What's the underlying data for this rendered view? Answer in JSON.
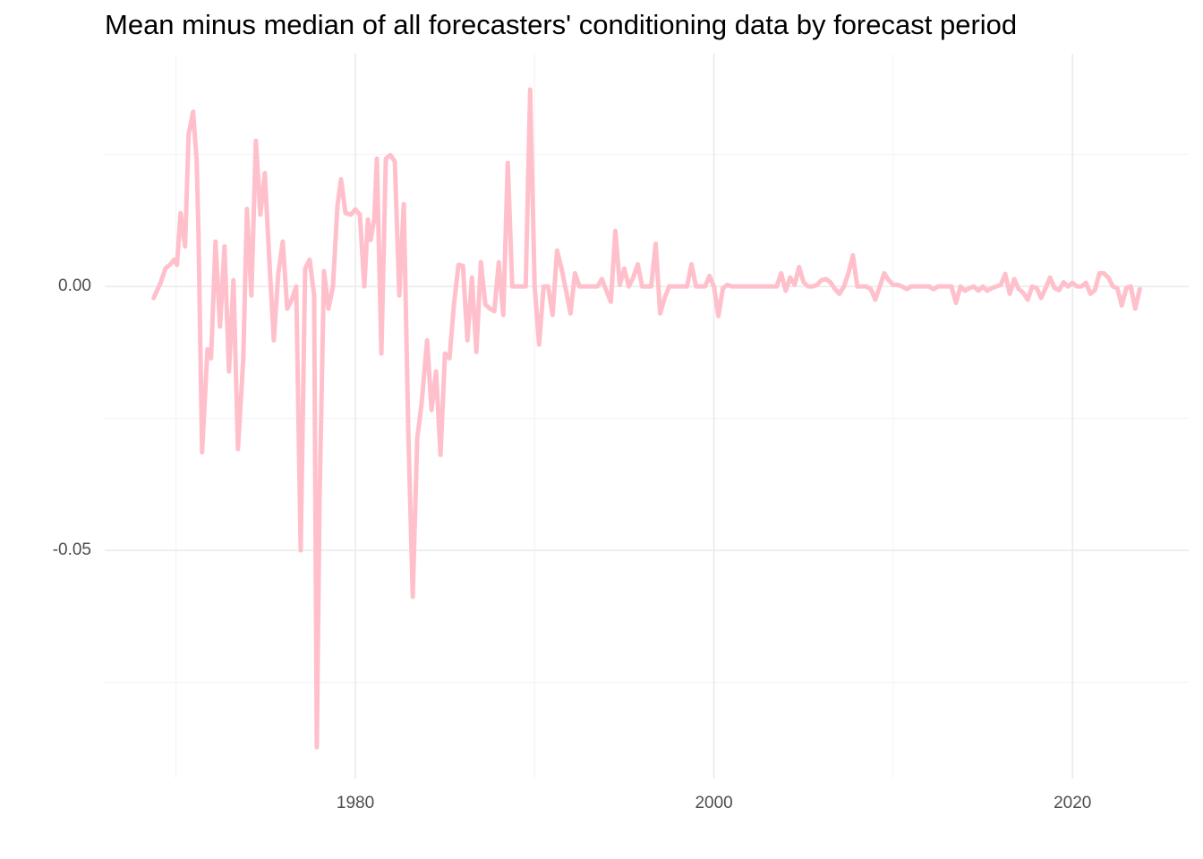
{
  "chart_data": {
    "type": "line",
    "title": "Mean minus median of all forecasters' conditioning data by forecast period",
    "color": "#ffc0cb",
    "x": [
      1968.75,
      1969.15,
      1969.4,
      1969.65,
      1969.9,
      1970.05,
      1970.25,
      1970.5,
      1970.7,
      1970.95,
      1971.15,
      1971.25,
      1971.45,
      1971.75,
      1971.95,
      1972.2,
      1972.45,
      1972.7,
      1972.95,
      1973.2,
      1973.45,
      1973.75,
      1973.95,
      1974.2,
      1974.45,
      1974.7,
      1974.95,
      1975.2,
      1975.45,
      1975.7,
      1975.95,
      1976.2,
      1976.45,
      1976.7,
      1976.95,
      1977.2,
      1977.45,
      1977.7,
      1977.85,
      1978.0,
      1978.25,
      1978.5,
      1978.75,
      1979.0,
      1979.2,
      1979.45,
      1979.75,
      1980.0,
      1980.25,
      1980.5,
      1980.7,
      1980.85,
      1981.05,
      1981.2,
      1981.45,
      1981.7,
      1981.95,
      1982.2,
      1982.45,
      1982.7,
      1982.95,
      1983.2,
      1983.45,
      1983.7,
      1984.0,
      1984.25,
      1984.5,
      1984.75,
      1985.0,
      1985.25,
      1985.5,
      1985.75,
      1986.0,
      1986.25,
      1986.5,
      1986.75,
      1987.0,
      1987.25,
      1987.5,
      1987.75,
      1988.0,
      1988.25,
      1988.5,
      1988.75,
      1989.0,
      1989.25,
      1989.5,
      1989.75,
      1990.0,
      1990.25,
      1990.5,
      1990.75,
      1991.0,
      1991.25,
      1991.5,
      1991.75,
      1992.0,
      1992.25,
      1992.5,
      1992.75,
      1993.0,
      1993.25,
      1993.5,
      1993.75,
      1994.0,
      1994.25,
      1994.5,
      1994.75,
      1995.0,
      1995.25,
      1995.5,
      1995.75,
      1996.0,
      1996.25,
      1996.5,
      1996.75,
      1997.0,
      1997.25,
      1997.5,
      1997.75,
      1998.0,
      1998.25,
      1998.5,
      1998.75,
      1999.0,
      1999.25,
      1999.5,
      1999.75,
      2000.0,
      2000.25,
      2000.5,
      2000.75,
      2001.0,
      2001.25,
      2001.5,
      2001.75,
      2002.0,
      2002.25,
      2002.5,
      2002.75,
      2003.0,
      2003.25,
      2003.5,
      2003.75,
      2004.0,
      2004.25,
      2004.5,
      2004.75,
      2005.0,
      2005.25,
      2005.5,
      2005.75,
      2006.0,
      2006.25,
      2006.5,
      2006.75,
      2007.0,
      2007.25,
      2007.5,
      2007.75,
      2008.0,
      2008.25,
      2008.5,
      2008.75,
      2009.0,
      2009.25,
      2009.5,
      2009.75,
      2010.0,
      2010.25,
      2010.5,
      2010.75,
      2011.0,
      2011.25,
      2011.5,
      2011.75,
      2012.0,
      2012.25,
      2012.5,
      2012.75,
      2013.0,
      2013.25,
      2013.5,
      2013.75,
      2014.0,
      2014.25,
      2014.5,
      2014.75,
      2015.0,
      2015.25,
      2015.5,
      2015.75,
      2016.0,
      2016.25,
      2016.5,
      2016.75,
      2017.0,
      2017.25,
      2017.5,
      2017.75,
      2018.0,
      2018.25,
      2018.5,
      2018.75,
      2019.0,
      2019.25,
      2019.5,
      2019.75,
      2020.0,
      2020.25,
      2020.5,
      2020.75,
      2021.0,
      2021.25,
      2021.5,
      2021.75,
      2022.0,
      2022.25,
      2022.5,
      2022.75,
      2023.0,
      2023.25,
      2023.5,
      2023.75
    ],
    "values": [
      -0.0022,
      0.0008,
      0.0034,
      0.0041,
      0.0051,
      0.0041,
      0.0139,
      0.0076,
      0.0288,
      0.0331,
      0.0237,
      0.0102,
      -0.0314,
      -0.0119,
      -0.0136,
      0.0085,
      -0.0076,
      0.0076,
      -0.0161,
      0.0012,
      -0.0308,
      -0.0136,
      0.0147,
      -0.0017,
      0.0276,
      0.0136,
      0.0215,
      0.0051,
      -0.0102,
      0.0025,
      0.0085,
      -0.0042,
      -0.0025,
      0,
      -0.05,
      0.0034,
      0.0051,
      -0.0017,
      -0.0873,
      -0.0407,
      0.0029,
      -0.0042,
      0,
      0.0153,
      0.0203,
      0.0139,
      0.0136,
      0.0146,
      0.0136,
      0,
      0.0127,
      0.0088,
      0.0127,
      0.0242,
      -0.0127,
      0.0242,
      0.0249,
      0.0237,
      -0.0017,
      0.0156,
      -0.0271,
      -0.0588,
      -0.0288,
      -0.022,
      -0.0102,
      -0.0234,
      -0.0161,
      -0.0319,
      -0.0127,
      -0.0136,
      -0.0034,
      0.0041,
      0.0039,
      -0.0102,
      0.0017,
      -0.0124,
      0.0046,
      -0.0034,
      -0.0042,
      -0.0047,
      0.0046,
      -0.0054,
      0.0234,
      0,
      0,
      0,
      0,
      0.0373,
      0,
      -0.011,
      0,
      0,
      -0.0054,
      0.0068,
      0.0034,
      -0.0008,
      -0.0051,
      0.0025,
      0,
      0,
      0,
      0,
      0,
      0.0014,
      -0.0008,
      -0.0029,
      0.0105,
      0.0003,
      0.0034,
      0,
      0.0017,
      0.0042,
      0,
      0,
      0,
      0.0081,
      -0.0051,
      -0.0022,
      0,
      0,
      0,
      0,
      0,
      0.0042,
      0,
      0,
      0,
      0.002,
      0,
      -0.0056,
      -0.0003,
      0.0003,
      0,
      0,
      0,
      0,
      0,
      0,
      0,
      0,
      0,
      0,
      0,
      0.0025,
      -0.0008,
      0.0017,
      0.0003,
      0.0037,
      0.0008,
      0,
      0,
      0.0003,
      0.0012,
      0.0014,
      0.0008,
      -0.0005,
      -0.0014,
      0,
      0.0025,
      0.0059,
      0,
      0,
      0,
      -0.0005,
      -0.0025,
      0,
      0.0025,
      0.0012,
      0.0003,
      0.0003,
      0,
      -0.0005,
      0,
      0,
      0,
      0,
      0,
      -0.0005,
      0,
      0,
      0,
      0,
      -0.0031,
      0,
      -0.0008,
      -0.0003,
      0,
      -0.0008,
      0,
      -0.0008,
      -0.0003,
      0,
      0.0003,
      0.0024,
      -0.0014,
      0.0014,
      -0.0005,
      -0.0012,
      -0.0025,
      0,
      -0.0003,
      -0.0022,
      -0.0003,
      0.0017,
      -0.0003,
      -0.0007,
      0.0008,
      0,
      0.0007,
      0,
      0,
      0.0007,
      -0.0014,
      -0.0007,
      0.0025,
      0.0025,
      0.0017,
      0,
      -0.0003,
      -0.0036,
      -0.0003,
      0,
      -0.0042,
      -0.0005
    ],
    "xlim": [
      1966.02,
      2026.48
    ],
    "ylim": [
      -0.0932,
      0.0441
    ],
    "xticks": [
      1980,
      2000,
      2020
    ],
    "yticks": [
      {
        "value": -0.05,
        "label": "-0.05"
      },
      {
        "value": 0,
        "label": "0.00"
      }
    ],
    "minor_grid": {
      "x": [
        1970,
        1990,
        2010
      ],
      "y": [
        -0.075,
        -0.025,
        0.025
      ]
    },
    "grid": true
  }
}
